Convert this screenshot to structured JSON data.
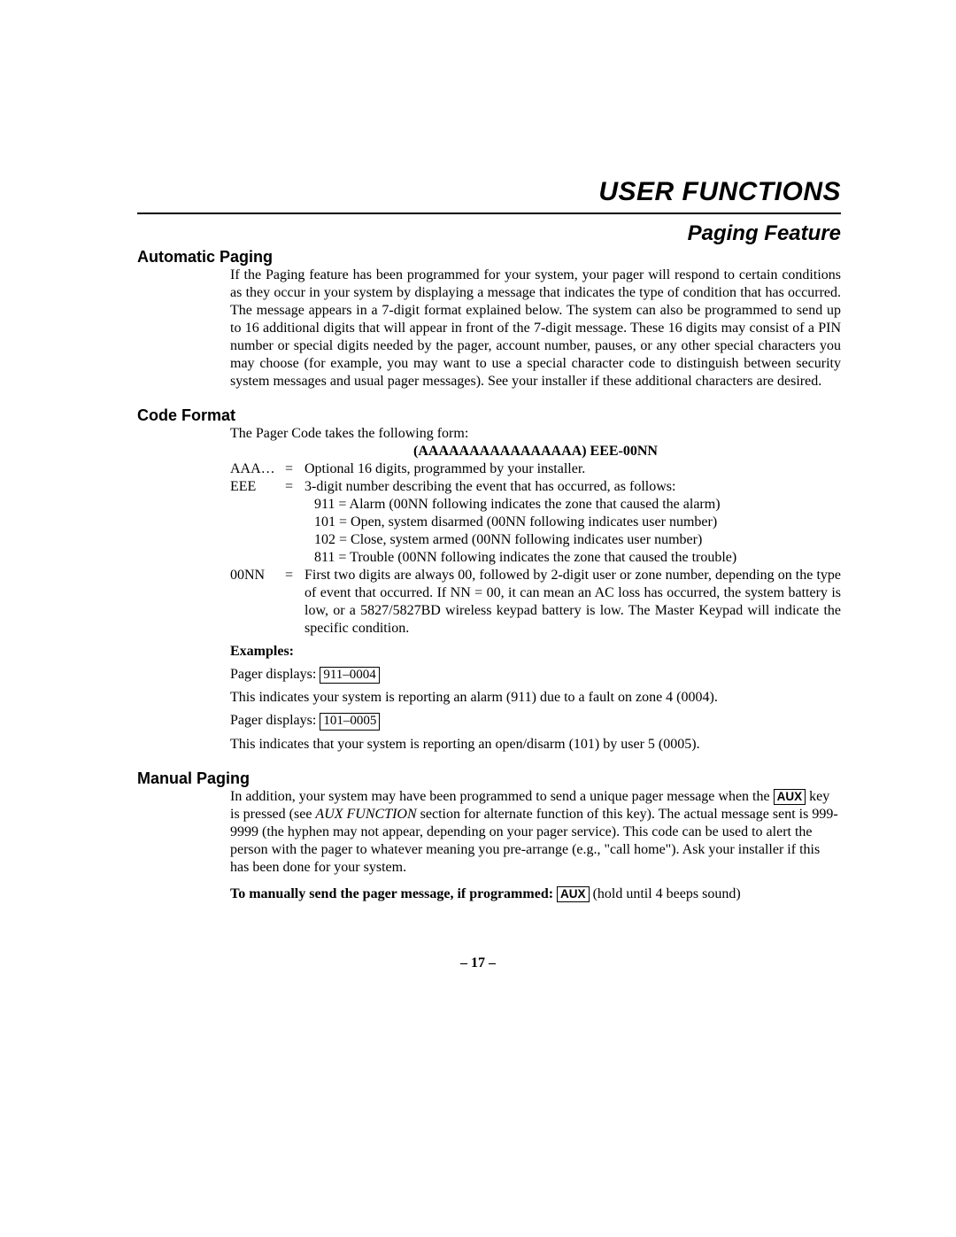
{
  "header": {
    "title": "USER FUNCTIONS",
    "subtitle": "Paging Feature"
  },
  "automatic_paging": {
    "heading": "Automatic Paging",
    "body": "If the Paging feature has been programmed for your system, your pager will respond to certain conditions as they occur in your system by displaying a message that indicates the type of condition that has occurred. The message appears in a 7-digit format explained below. The system can also be programmed to send up to 16 additional digits that will appear in front of the 7-digit message. These 16 digits may consist of a PIN number or special digits needed by the pager, account number, pauses, or any other special characters you may choose (for example, you may want to use a special character code to distinguish between security system messages and usual pager messages). See your installer if these additional characters are desired."
  },
  "code_format": {
    "heading": "Code Format",
    "intro": "The Pager Code takes the following form:",
    "format_line": "(AAAAAAAAAAAAAAAA) EEE-00NN",
    "aaa": {
      "key": "AAA…",
      "eq": "=",
      "val": "Optional 16 digits, programmed by your installer."
    },
    "eee": {
      "key": "EEE",
      "eq": "=",
      "val": "3-digit number describing the event that has occurred, as follows:",
      "items": [
        "911 = Alarm (00NN following indicates the zone that caused the alarm)",
        "101 = Open, system disarmed (00NN following indicates user number)",
        "102 = Close, system armed (00NN following indicates user number)",
        "811 = Trouble (00NN following indicates the zone that caused the trouble)"
      ]
    },
    "nn": {
      "key": "00NN",
      "eq": "=",
      "val": "First two digits are always 00, followed by 2-digit user or zone number, depending on the type of event that occurred. If NN = 00, it can mean an AC loss has occurred, the system battery is low, or a 5827/5827BD wireless keypad battery is low. The Master Keypad will indicate the specific condition."
    },
    "examples": {
      "label": "Examples:",
      "ex1_prefix": "Pager displays:",
      "ex1_box": "911–0004",
      "ex1_explain": "This indicates your system is reporting an alarm (911) due to a fault on zone 4 (0004).",
      "ex2_prefix": "Pager displays:",
      "ex2_box": "101–0005",
      "ex2_explain": "This indicates that your system is reporting an open/disarm (101) by user 5 (0005)."
    }
  },
  "manual_paging": {
    "heading": "Manual Paging",
    "p1a": "In addition, your system may have been programmed to send a unique pager message when the ",
    "aux1": "AUX",
    "p1b": " key is pressed (see ",
    "aux_function_ital": "AUX FUNCTION",
    "p1c": " section for alternate function of this key). The actual message sent is 999-9999 (the hyphen may not appear, depending on your pager service). This code can be used to alert the person with the pager to whatever meaning you pre-arrange (e.g., \"call home\").  Ask your installer if this has been done for your system.",
    "instr_bold": "To manually send the pager message, if programmed:",
    "aux2": "AUX",
    "instr_tail": "(hold until 4 beeps sound)"
  },
  "page_number": "– 17 –"
}
